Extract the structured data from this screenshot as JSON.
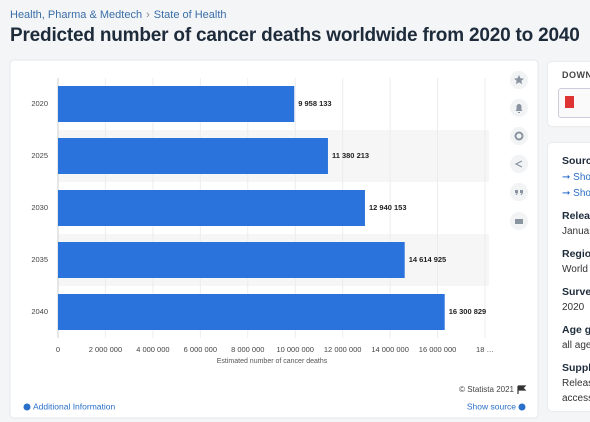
{
  "breadcrumb": [
    "Health, Pharma & Medtech",
    "State of Health"
  ],
  "chart_data": {
    "type": "hbar",
    "title": "Predicted number of cancer deaths worldwide from 2020 to 2040",
    "categories": [
      "2020",
      "2025",
      "2030",
      "2035",
      "2040"
    ],
    "values": [
      9958133,
      11380213,
      12940153,
      14614925,
      16300829
    ],
    "value_labels": [
      "9 958 133",
      "11 380 213",
      "12 940 153",
      "14 614 925",
      "16 300 829"
    ],
    "color": "#2a73dc",
    "xlim": [
      0,
      18000000
    ],
    "xticks": [
      0,
      {
        "value": 2000000,
        "label": "2 000 000"
      },
      {
        "value": 4000000,
        "label": "4 000 000"
      },
      {
        "value": 6000000,
        "label": "6 000 000"
      },
      {
        "value": 8000000,
        "label": "8 000 000"
      },
      {
        "value": 10000000,
        "label": "10 000 000"
      },
      {
        "value": 12000000,
        "label": "12 000 000"
      },
      {
        "value": 14000000,
        "label": "14 000 000"
      },
      {
        "value": 16000000,
        "label": "16 000 000"
      },
      {
        "value": 18000000,
        "label": "18 …"
      }
    ],
    "grid": true,
    "xlabel": "Estimated number of cancer deaths",
    "copyright": "© Statista 2021"
  },
  "footer": {
    "left": "Additional Information",
    "right": "Show source"
  },
  "sidebar": {
    "download": "DOWN",
    "items": [
      "Sourc",
      "➞ Sho",
      "➞ Sho",
      "Relea",
      "Januar",
      "Regio",
      "World",
      "Surve",
      "2020",
      "Age g",
      "all age",
      "Suppl",
      "Releas",
      "access"
    ]
  }
}
